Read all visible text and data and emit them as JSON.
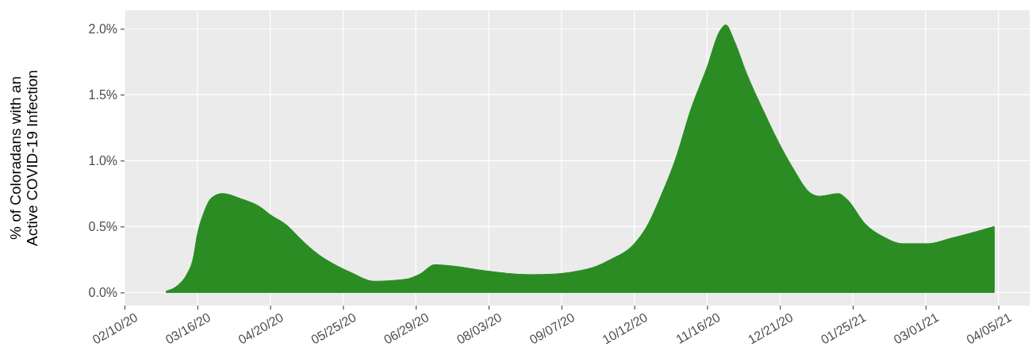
{
  "chart_data": {
    "type": "area",
    "ylabel": "% of Coloradans with an\nActive COVID-19 Infection",
    "color": "#2a8c23",
    "grid": true,
    "xlim": [
      "2020-02-10",
      "2021-04-20"
    ],
    "xticks": [
      {
        "value": "2020-02-10",
        "label": "02/10/20"
      },
      {
        "value": "2020-03-16",
        "label": "03/16/20"
      },
      {
        "value": "2020-04-20",
        "label": "04/20/20"
      },
      {
        "value": "2020-05-25",
        "label": "05/25/20"
      },
      {
        "value": "2020-06-29",
        "label": "06/29/20"
      },
      {
        "value": "2020-08-03",
        "label": "08/03/20"
      },
      {
        "value": "2020-09-07",
        "label": "09/07/20"
      },
      {
        "value": "2020-10-12",
        "label": "10/12/20"
      },
      {
        "value": "2020-11-16",
        "label": "11/16/20"
      },
      {
        "value": "2020-12-21",
        "label": "12/21/20"
      },
      {
        "value": "2021-01-25",
        "label": "01/25/21"
      },
      {
        "value": "2021-03-01",
        "label": "03/01/21"
      },
      {
        "value": "2021-04-05",
        "label": "04/05/21"
      }
    ],
    "ylim": [
      -0.1,
      2.14
    ],
    "yticks": [
      {
        "value": 0,
        "label": "0.0%"
      },
      {
        "value": 0.5,
        "label": "0.5%"
      },
      {
        "value": 1,
        "label": "1.0%"
      },
      {
        "value": 1.5,
        "label": "1.5%"
      },
      {
        "value": 2,
        "label": "2.0%"
      }
    ],
    "x": [
      "2020-03-01",
      "2020-03-07",
      "2020-03-11",
      "2020-03-14",
      "2020-03-16",
      "2020-03-19",
      "2020-03-23",
      "2020-03-28",
      "2020-04-06",
      "2020-04-15",
      "2020-04-20",
      "2020-04-28",
      "2020-05-05",
      "2020-05-13",
      "2020-05-20",
      "2020-05-29",
      "2020-06-09",
      "2020-06-24",
      "2020-07-01",
      "2020-07-08",
      "2020-07-17",
      "2020-08-01",
      "2020-08-23",
      "2020-09-04",
      "2020-09-14",
      "2020-09-24",
      "2020-09-30",
      "2020-10-12",
      "2020-10-18",
      "2020-10-25",
      "2020-11-01",
      "2020-11-08",
      "2020-11-16",
      "2020-11-22",
      "2020-11-25",
      "2020-11-29",
      "2020-12-05",
      "2020-12-13",
      "2020-12-20",
      "2020-12-27",
      "2021-01-05",
      "2021-01-09",
      "2021-01-18",
      "2021-01-22",
      "2021-01-31",
      "2021-02-09",
      "2021-02-18",
      "2021-03-02",
      "2021-03-13",
      "2021-03-25",
      "2021-04-03"
    ],
    "values": [
      0.01,
      0.06,
      0.14,
      0.26,
      0.44,
      0.6,
      0.72,
      0.75,
      0.71,
      0.65,
      0.59,
      0.51,
      0.4,
      0.29,
      0.22,
      0.15,
      0.085,
      0.1,
      0.14,
      0.21,
      0.2,
      0.165,
      0.135,
      0.14,
      0.16,
      0.2,
      0.245,
      0.37,
      0.5,
      0.74,
      1.02,
      1.38,
      1.71,
      1.98,
      2.03,
      1.91,
      1.66,
      1.38,
      1.15,
      0.95,
      0.75,
      0.73,
      0.75,
      0.71,
      0.52,
      0.42,
      0.37,
      0.37,
      0.41,
      0.46,
      0.5
    ]
  }
}
